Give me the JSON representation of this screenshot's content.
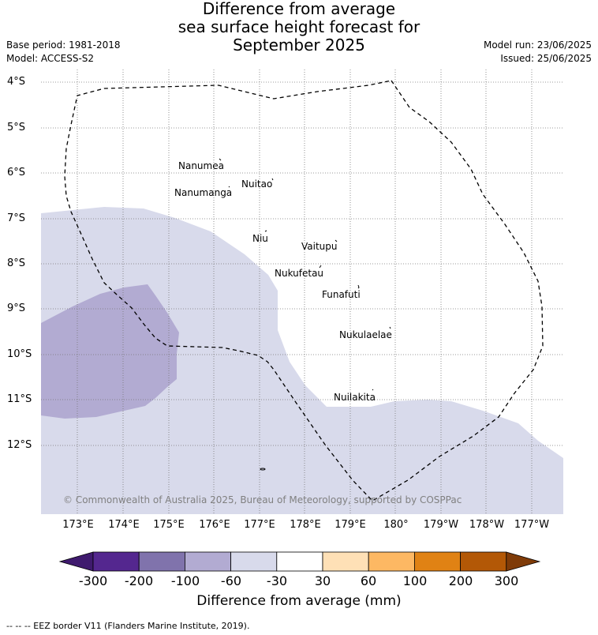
{
  "title_lines": [
    "Difference from average",
    "sea surface height forecast for",
    "September 2025"
  ],
  "base_period": "Base period: 1981-2018",
  "model": "Model: ACCESS-S2",
  "model_run": "Model run: 23/06/2025",
  "issued": "Issued: 25/06/2025",
  "lat_labels": [
    "4°S",
    "5°S",
    "6°S",
    "7°S",
    "8°S",
    "9°S",
    "10°S",
    "11°S",
    "12°S"
  ],
  "lon_labels": [
    "173°E",
    "174°E",
    "175°E",
    "176°E",
    "177°E",
    "178°E",
    "179°E",
    "180°",
    "179°W",
    "178°W",
    "177°W"
  ],
  "places": [
    "Nanumea",
    "Nuitao",
    "Nanumanga",
    "Niu",
    "Vaitupu",
    "Nukufetau",
    "Funafuti",
    "Nukulaelae",
    "Nuilakita"
  ],
  "copyright": "© Commonwealth of Australia 2025, Bureau of Meteorology, supported by COSPPac",
  "colorbar": {
    "ticks": [
      "-300",
      "-200",
      "-100",
      "-60",
      "-30",
      "30",
      "60",
      "100",
      "200",
      "300"
    ],
    "colors": [
      "#3f1a6e",
      "#54278f",
      "#8073ac",
      "#b2abd2",
      "#d8daeb",
      "#ffffff",
      "#fee0b6",
      "#fdb863",
      "#e08214",
      "#b35806",
      "#7f3b08"
    ],
    "title": "Difference from average (mm)"
  },
  "footer": "--  --  -- EEZ border V11 (Flanders Marine Institute, 2019)."
}
